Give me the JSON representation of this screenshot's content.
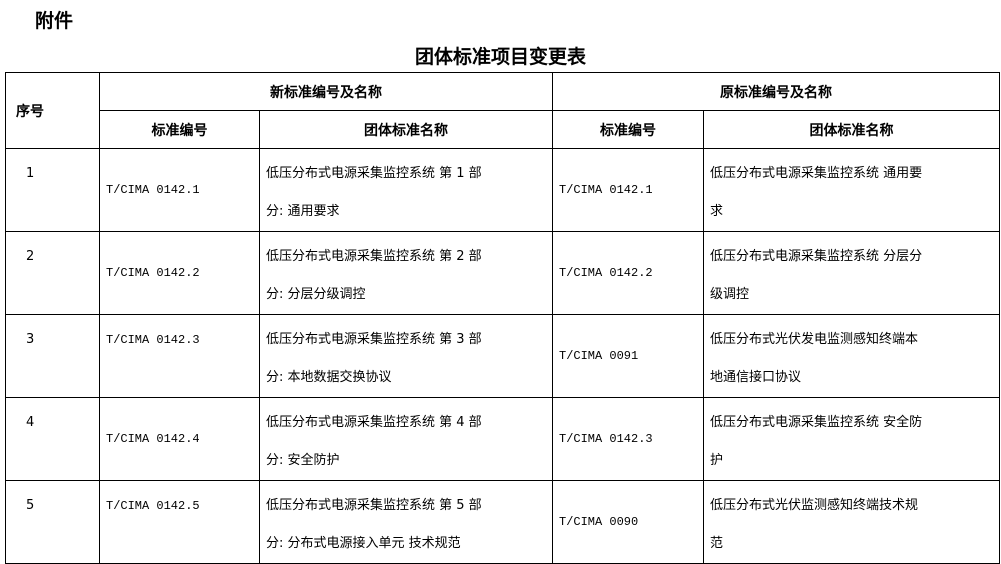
{
  "attachment_label": "附件",
  "title": "团体标准项目变更表",
  "headers": {
    "seq": "序号",
    "new_group": "新标准编号及名称",
    "old_group": "原标准编号及名称",
    "code": "标准编号",
    "name": "团体标准名称"
  },
  "rows": [
    {
      "seq": "1",
      "new_code": "T/CIMA 0142.1",
      "new_name": [
        "低压分布式电源采集监控系统 第 1 部",
        "分: 通用要求"
      ],
      "old_code": "T/CIMA 0142.1",
      "old_name": [
        "低压分布式电源采集监控系统 通用要",
        "求"
      ]
    },
    {
      "seq": "2",
      "new_code": "T/CIMA 0142.2",
      "new_name": [
        "低压分布式电源采集监控系统 第 2 部",
        "分: 分层分级调控"
      ],
      "old_code": "T/CIMA 0142.2",
      "old_name": [
        "低压分布式电源采集监控系统 分层分",
        "级调控"
      ]
    },
    {
      "seq": "3",
      "new_code": "T/CIMA 0142.3",
      "new_name": [
        "低压分布式电源采集监控系统 第 3 部",
        "分: 本地数据交换协议"
      ],
      "old_code": "T/CIMA 0091",
      "old_name": [
        "低压分布式光伏发电监测感知终端本",
        "地通信接口协议"
      ]
    },
    {
      "seq": "4",
      "new_code": "T/CIMA 0142.4",
      "new_name": [
        "低压分布式电源采集监控系统 第 4 部",
        "分: 安全防护"
      ],
      "old_code": "T/CIMA 0142.3",
      "old_name": [
        "低压分布式电源采集监控系统 安全防",
        "护"
      ]
    },
    {
      "seq": "5",
      "new_code": "T/CIMA 0142.5",
      "new_name": [
        "低压分布式电源采集监控系统 第 5 部",
        "分: 分布式电源接入单元 技术规范"
      ],
      "old_code": "T/CIMA 0090",
      "old_name": [
        "低压分布式光伏监测感知终端技术规",
        "范"
      ]
    }
  ]
}
